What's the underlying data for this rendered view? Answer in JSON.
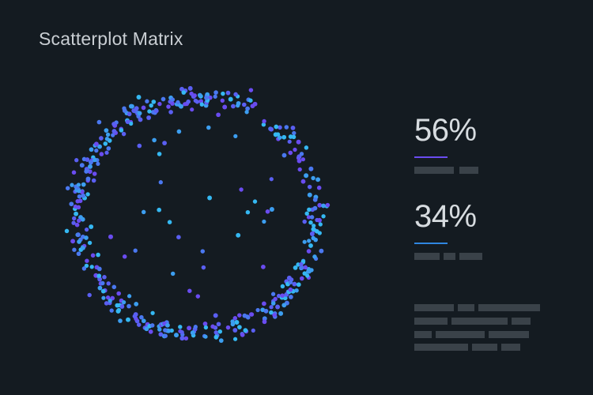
{
  "title": "Scatterplot Matrix",
  "stats": [
    {
      "value": "56%",
      "accent": "#6a4cf0"
    },
    {
      "value": "34%",
      "accent": "#2f86e0"
    }
  ],
  "colors": {
    "background": "#141b21",
    "placeholder": "#3a4249",
    "point_palette": [
      "#6a4cf0",
      "#5a5ff2",
      "#4a78f0",
      "#3c9ef0",
      "#35b8f2"
    ]
  },
  "chart_data": {
    "type": "scatter",
    "title": "Scatterplot Matrix",
    "xlabel": "",
    "ylabel": "",
    "grid": false,
    "series": [
      {
        "shape": "ring",
        "center": [
          0,
          0
        ],
        "radius": 1.0,
        "ring_spread": 0.09,
        "ring_point_count": 420,
        "interior_point_count": 30
      }
    ]
  }
}
